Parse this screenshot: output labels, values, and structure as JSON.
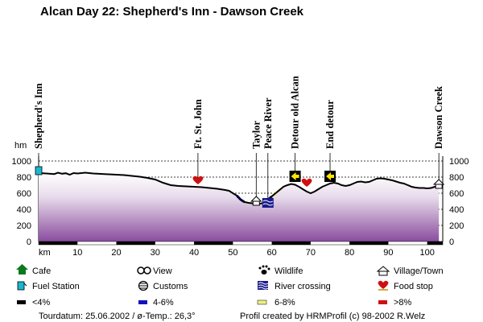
{
  "title": "Alcan Day 22: Shepherd's Inn - Dawson Creek",
  "chart_data": {
    "type": "area",
    "ylabel": "hm",
    "xlabel": "km",
    "xlim": [
      0,
      104
    ],
    "ylim": [
      0,
      1000
    ],
    "x_ticks": [
      10,
      20,
      30,
      40,
      50,
      60,
      70,
      80,
      90,
      100
    ],
    "y_ticks": [
      0,
      200,
      400,
      600,
      800,
      1000
    ],
    "grid": true,
    "profile": [
      {
        "x": 0,
        "y": 850
      },
      {
        "x": 2,
        "y": 845
      },
      {
        "x": 4,
        "y": 838
      },
      {
        "x": 5,
        "y": 855
      },
      {
        "x": 6,
        "y": 842
      },
      {
        "x": 7,
        "y": 848
      },
      {
        "x": 8,
        "y": 830
      },
      {
        "x": 9,
        "y": 850
      },
      {
        "x": 10,
        "y": 845
      },
      {
        "x": 12,
        "y": 855
      },
      {
        "x": 14,
        "y": 845
      },
      {
        "x": 16,
        "y": 840
      },
      {
        "x": 18,
        "y": 835
      },
      {
        "x": 20,
        "y": 830
      },
      {
        "x": 22,
        "y": 825
      },
      {
        "x": 24,
        "y": 815
      },
      {
        "x": 26,
        "y": 805
      },
      {
        "x": 28,
        "y": 790
      },
      {
        "x": 30,
        "y": 770
      },
      {
        "x": 32,
        "y": 730
      },
      {
        "x": 34,
        "y": 700
      },
      {
        "x": 36,
        "y": 690
      },
      {
        "x": 38,
        "y": 685
      },
      {
        "x": 40,
        "y": 680
      },
      {
        "x": 42,
        "y": 675
      },
      {
        "x": 44,
        "y": 665
      },
      {
        "x": 46,
        "y": 655
      },
      {
        "x": 48,
        "y": 640
      },
      {
        "x": 49,
        "y": 630
      },
      {
        "x": 50,
        "y": 600
      },
      {
        "x": 51,
        "y": 570
      },
      {
        "x": 52,
        "y": 520
      },
      {
        "x": 53,
        "y": 490
      },
      {
        "x": 54,
        "y": 480
      },
      {
        "x": 55,
        "y": 475
      },
      {
        "x": 56,
        "y": 470
      },
      {
        "x": 57,
        "y": 470
      },
      {
        "x": 58,
        "y": 480
      },
      {
        "x": 59,
        "y": 520
      },
      {
        "x": 60,
        "y": 560
      },
      {
        "x": 61,
        "y": 600
      },
      {
        "x": 62,
        "y": 640
      },
      {
        "x": 63,
        "y": 680
      },
      {
        "x": 64,
        "y": 700
      },
      {
        "x": 65,
        "y": 715
      },
      {
        "x": 66,
        "y": 705
      },
      {
        "x": 67,
        "y": 680
      },
      {
        "x": 68,
        "y": 650
      },
      {
        "x": 69,
        "y": 620
      },
      {
        "x": 70,
        "y": 600
      },
      {
        "x": 71,
        "y": 620
      },
      {
        "x": 72,
        "y": 650
      },
      {
        "x": 73,
        "y": 680
      },
      {
        "x": 74,
        "y": 700
      },
      {
        "x": 75,
        "y": 720
      },
      {
        "x": 76,
        "y": 730
      },
      {
        "x": 77,
        "y": 720
      },
      {
        "x": 78,
        "y": 700
      },
      {
        "x": 79,
        "y": 690
      },
      {
        "x": 80,
        "y": 700
      },
      {
        "x": 81,
        "y": 720
      },
      {
        "x": 82,
        "y": 740
      },
      {
        "x": 83,
        "y": 745
      },
      {
        "x": 84,
        "y": 735
      },
      {
        "x": 85,
        "y": 740
      },
      {
        "x": 86,
        "y": 760
      },
      {
        "x": 87,
        "y": 780
      },
      {
        "x": 88,
        "y": 785
      },
      {
        "x": 89,
        "y": 780
      },
      {
        "x": 90,
        "y": 770
      },
      {
        "x": 91,
        "y": 760
      },
      {
        "x": 92,
        "y": 745
      },
      {
        "x": 93,
        "y": 730
      },
      {
        "x": 94,
        "y": 720
      },
      {
        "x": 95,
        "y": 700
      },
      {
        "x": 96,
        "y": 680
      },
      {
        "x": 97,
        "y": 670
      },
      {
        "x": 98,
        "y": 665
      },
      {
        "x": 99,
        "y": 665
      },
      {
        "x": 100,
        "y": 660
      },
      {
        "x": 101,
        "y": 665
      },
      {
        "x": 102,
        "y": 680
      },
      {
        "x": 103,
        "y": 700
      }
    ],
    "grade_segments": [
      {
        "from": 0,
        "to": 10,
        "class": "<4%"
      },
      {
        "from": 20,
        "to": 30,
        "class": "<4%"
      },
      {
        "from": 40,
        "to": 50,
        "class": "<4%"
      },
      {
        "from": 60,
        "to": 70,
        "class": "<4%"
      },
      {
        "from": 80,
        "to": 90,
        "class": "<4%"
      },
      {
        "from": 100,
        "to": 104,
        "class": "<4%"
      }
    ],
    "grade_bands": [
      {
        "from": 51,
        "to": 53,
        "class": "4-6%"
      },
      {
        "from": 58,
        "to": 60,
        "class": "4-6%"
      },
      {
        "from": 60,
        "to": 62,
        "class": "6-8%"
      },
      {
        "from": 53,
        "to": 54,
        "class": "6-8%"
      }
    ],
    "places": [
      {
        "km": 0,
        "label": "Shepherd's Inn",
        "icon": "fuel-station"
      },
      {
        "km": 41,
        "label": "Ft. St. John",
        "icon": "food-stop"
      },
      {
        "km": 56,
        "label": "Taylor",
        "icon": "village"
      },
      {
        "km": 59,
        "label": "Peace River",
        "icon": "river-crossing"
      },
      {
        "km": 66,
        "label": "Detour old Alcan",
        "icon": "detour-arrow"
      },
      {
        "km": 75,
        "label": "End detour",
        "icon": "detour-arrow"
      },
      {
        "km": 103,
        "label": "Dawson Creek",
        "icon": "village"
      }
    ],
    "extra_markers": [
      {
        "km": 69,
        "icon": "food-stop"
      }
    ]
  },
  "legend": {
    "items": [
      {
        "label": "Cafe",
        "icon": "cafe-icon"
      },
      {
        "label": "View",
        "icon": "view-icon"
      },
      {
        "label": "Wildlife",
        "icon": "wildlife-icon"
      },
      {
        "label": "Village/Town",
        "icon": "village-icon"
      },
      {
        "label": "Fuel Station",
        "icon": "fuel-station-icon"
      },
      {
        "label": "Customs",
        "icon": "customs-icon"
      },
      {
        "label": "River crossing",
        "icon": "river-crossing-icon"
      },
      {
        "label": "Food stop",
        "icon": "food-stop-icon"
      },
      {
        "label": "<4%",
        "icon": "grade-lt4-swatch",
        "color": "#000000"
      },
      {
        "label": "4-6%",
        "icon": "grade-4-6-swatch",
        "color": "#1010c0"
      },
      {
        "label": "6-8%",
        "icon": "grade-6-8-swatch",
        "color": "#f0f080"
      },
      {
        "label": ">8%",
        "icon": "grade-gt8-swatch",
        "color": "#d01010"
      }
    ]
  },
  "footer": {
    "left": "Tourdatum: 25.06.2002  /  ø-Temp.: 26,3°",
    "right": "Profil created by HRMProfil (c) 98-2002 R.Welz"
  },
  "colors": {
    "fill_top": "#ffffff",
    "fill_bottom": "#8a4c9e",
    "line": "#000000"
  }
}
